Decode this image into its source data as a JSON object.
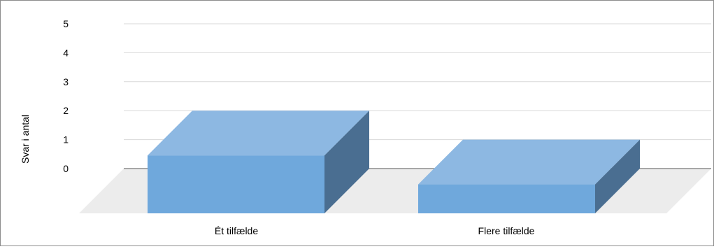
{
  "chart_data": {
    "type": "bar",
    "categories": [
      "Ét tilfælde",
      "Flere tilfælde"
    ],
    "values": [
      2,
      1
    ],
    "ylabel": "Svar i antal",
    "xlabel": "",
    "ylim": [
      0,
      5
    ],
    "yticks": [
      0,
      1,
      2,
      3,
      4,
      5
    ],
    "grid": true,
    "legend": "none",
    "style": "3d"
  },
  "colors": {
    "bar_front": "#6fa8dc",
    "bar_top": "#8db8e2",
    "bar_side": "#4a6e91",
    "floor": "#ececec",
    "gridline": "#d9d9d9",
    "axis": "#8c8c8c"
  }
}
